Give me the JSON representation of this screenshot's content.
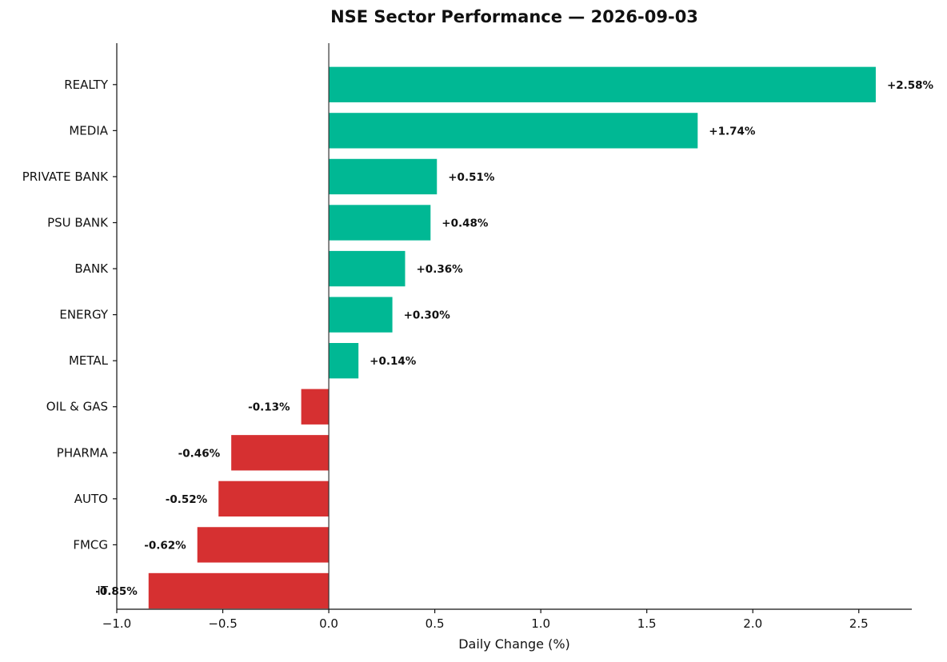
{
  "chart_data": {
    "type": "bar",
    "orientation": "horizontal",
    "title": "NSE Sector Performance — 2026-09-03",
    "xlabel": "Daily Change (%)",
    "ylabel": "",
    "xlim": [
      -1.0,
      2.75
    ],
    "x_ticks": [
      -1.0,
      -0.5,
      0.0,
      0.5,
      1.0,
      1.5,
      2.0,
      2.5
    ],
    "x_tick_labels": [
      "−1.0",
      "−0.5",
      "0.0",
      "0.5",
      "1.0",
      "1.5",
      "2.0",
      "2.5"
    ],
    "categories": [
      "REALTY",
      "MEDIA",
      "PRIVATE BANK",
      "PSU BANK",
      "BANK",
      "ENERGY",
      "METAL",
      "OIL & GAS",
      "PHARMA",
      "AUTO",
      "FMCG",
      "IT"
    ],
    "values": [
      2.58,
      1.74,
      0.51,
      0.48,
      0.36,
      0.3,
      0.14,
      -0.13,
      -0.46,
      -0.52,
      -0.62,
      -0.85
    ],
    "data_labels": [
      "+2.58%",
      "+1.74%",
      "+0.51%",
      "+0.48%",
      "+0.36%",
      "+0.30%",
      "+0.14%",
      "-0.13%",
      "-0.46%",
      "-0.52%",
      "-0.62%",
      "-0.85%"
    ],
    "colors": {
      "positive": "#00b894",
      "negative": "#d63031"
    },
    "grid": false,
    "legend": "none"
  }
}
